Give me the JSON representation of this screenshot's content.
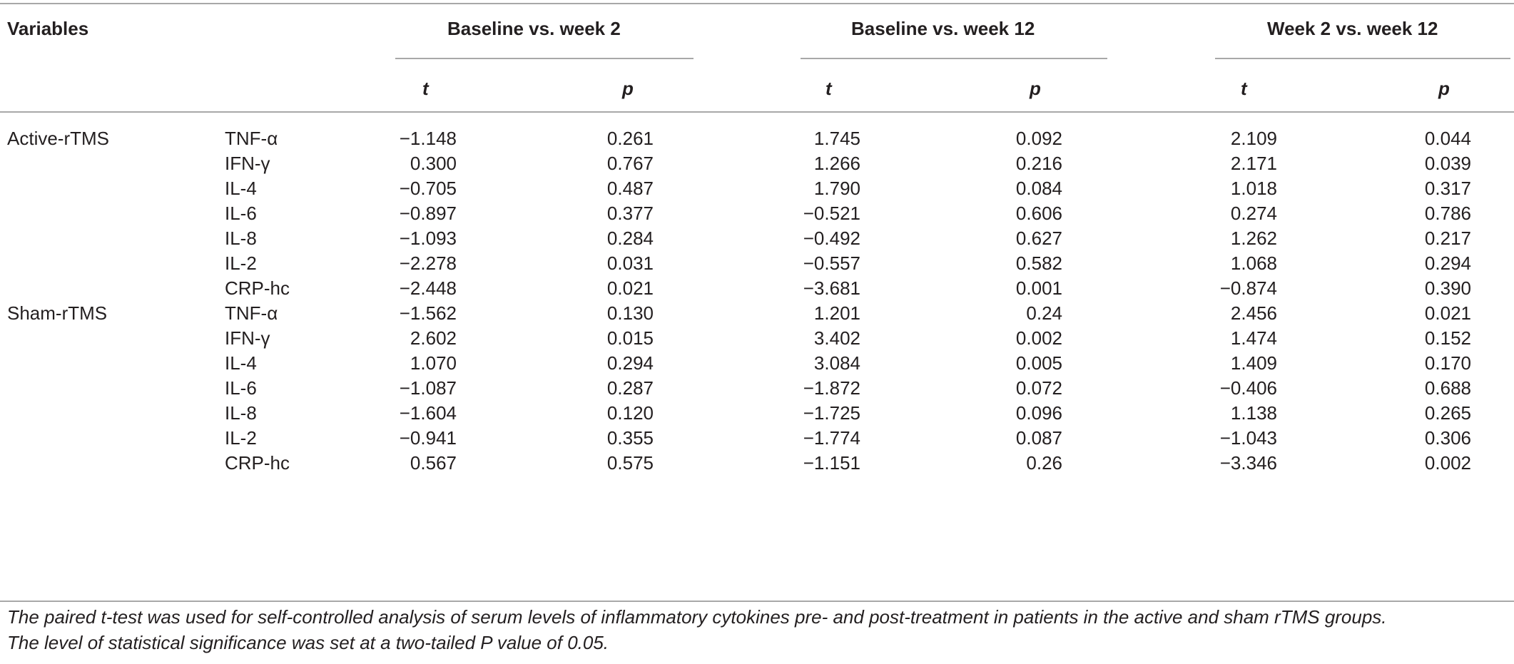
{
  "table": {
    "header": {
      "variables": "Variables",
      "groups": [
        "Baseline vs. week 2",
        "Baseline vs. week 12",
        "Week 2 vs. week 12"
      ],
      "t_label": "t",
      "p_label": "p"
    },
    "rows": [
      {
        "group": "Active-rTMS",
        "var": "TNF-α",
        "values": [
          "−1.148",
          "0.261",
          "1.745",
          "0.092",
          "2.109",
          "0.044"
        ]
      },
      {
        "group": "",
        "var": "IFN-γ",
        "values": [
          "0.300",
          "0.767",
          "1.266",
          "0.216",
          "2.171",
          "0.039"
        ]
      },
      {
        "group": "",
        "var": "IL-4",
        "values": [
          "−0.705",
          "0.487",
          "1.790",
          "0.084",
          "1.018",
          "0.317"
        ]
      },
      {
        "group": "",
        "var": "IL-6",
        "values": [
          "−0.897",
          "0.377",
          "−0.521",
          "0.606",
          "0.274",
          "0.786"
        ]
      },
      {
        "group": "",
        "var": "IL-8",
        "values": [
          "−1.093",
          "0.284",
          "−0.492",
          "0.627",
          "1.262",
          "0.217"
        ]
      },
      {
        "group": "",
        "var": "IL-2",
        "values": [
          "−2.278",
          "0.031",
          "−0.557",
          "0.582",
          "1.068",
          "0.294"
        ]
      },
      {
        "group": "",
        "var": "CRP-hc",
        "values": [
          "−2.448",
          "0.021",
          "−3.681",
          "0.001",
          "−0.874",
          "0.390"
        ]
      },
      {
        "group": "Sham-rTMS",
        "var": "TNF-α",
        "values": [
          "−1.562",
          "0.130",
          "1.201",
          "0.24",
          "2.456",
          "0.021"
        ]
      },
      {
        "group": "",
        "var": "IFN-γ",
        "values": [
          "2.602",
          "0.015",
          "3.402",
          "0.002",
          "1.474",
          "0.152"
        ]
      },
      {
        "group": "",
        "var": "IL-4",
        "values": [
          "1.070",
          "0.294",
          "3.084",
          "0.005",
          "1.409",
          "0.170"
        ]
      },
      {
        "group": "",
        "var": "IL-6",
        "values": [
          "−1.087",
          "0.287",
          "−1.872",
          "0.072",
          "−0.406",
          "0.688"
        ]
      },
      {
        "group": "",
        "var": "IL-8",
        "values": [
          "−1.604",
          "0.120",
          "−1.725",
          "0.096",
          "1.138",
          "0.265"
        ]
      },
      {
        "group": "",
        "var": "IL-2",
        "values": [
          "−0.941",
          "0.355",
          "−1.774",
          "0.087",
          "−1.043",
          "0.306"
        ]
      },
      {
        "group": "",
        "var": "CRP-hc",
        "values": [
          "0.567",
          "0.575",
          "−1.151",
          "0.26",
          "−3.346",
          "0.002"
        ]
      }
    ]
  },
  "footnote": {
    "line1": "The paired t-test was used for self-controlled analysis of serum levels of inflammatory cytokines pre- and post-treatment in patients in the active and sham rTMS groups.",
    "line2": "The level of statistical significance was set at a two-tailed P value of 0.05."
  }
}
